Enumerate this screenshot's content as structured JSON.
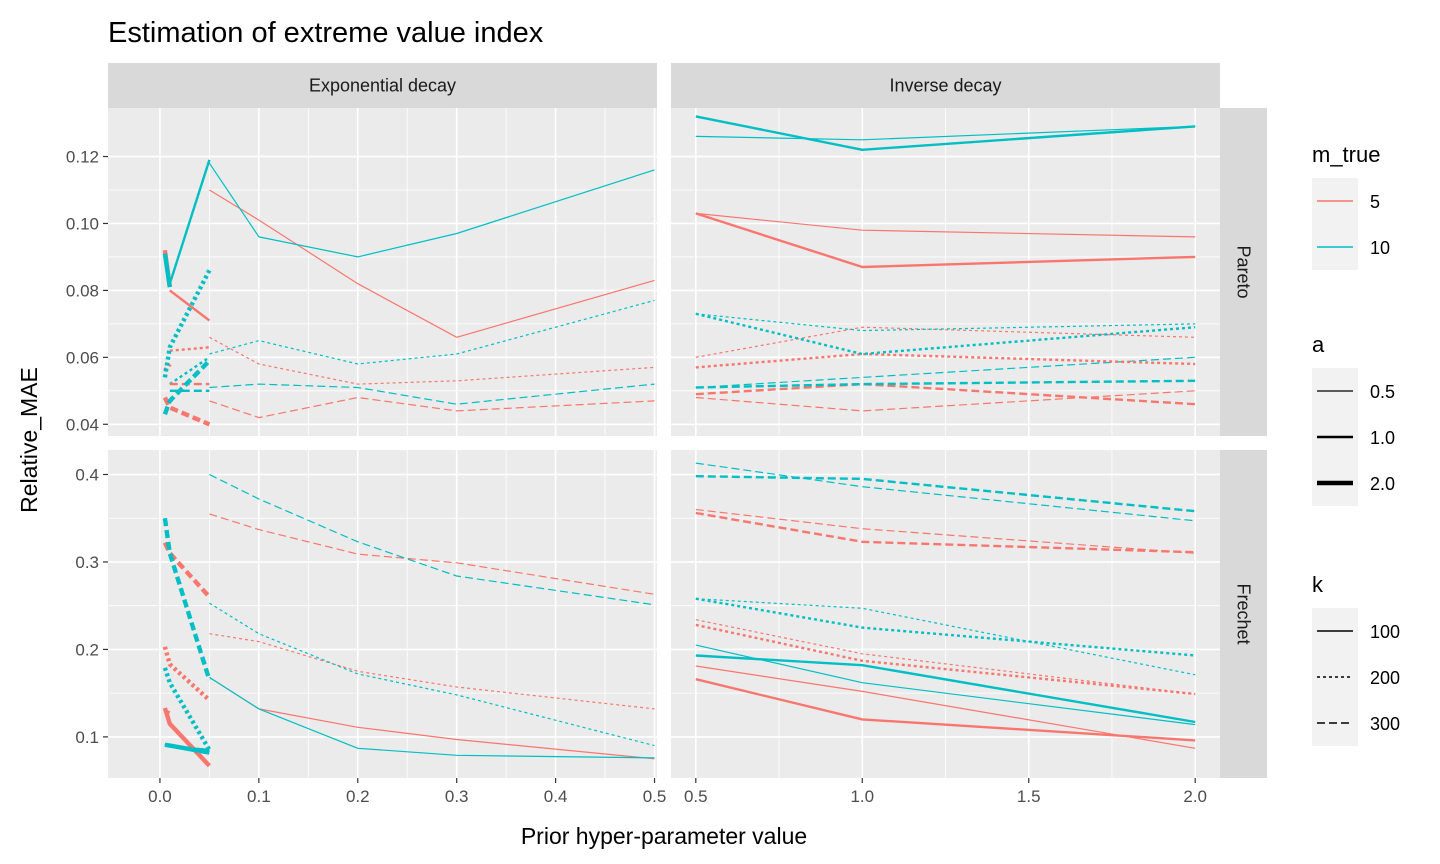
{
  "chart_data": {
    "type": "line",
    "title": "Estimation of extreme value index",
    "xlabel": "Prior hyper-parameter value",
    "ylabel": "Relative_MAE",
    "facets": {
      "columns": [
        "Exponential decay",
        "Inverse decay"
      ],
      "rows": [
        "Pareto",
        "Frechet"
      ]
    },
    "axes": {
      "x_ticks": [
        {
          "values": [
            0.0,
            0.1,
            0.2,
            0.3,
            0.4,
            0.5
          ],
          "labels": [
            "0.0",
            "0.1",
            "0.2",
            "0.3",
            "0.4",
            "0.5"
          ],
          "xlim": [
            -0.0525,
            0.5025
          ]
        },
        {
          "values": [
            0.5,
            1.0,
            1.5,
            2.0
          ],
          "labels": [
            "0.5",
            "1.0",
            "1.5",
            "2.0"
          ],
          "xlim": [
            0.4255,
            2.0745
          ]
        }
      ],
      "y_ticks": [
        {
          "values": [
            0.04,
            0.06,
            0.08,
            0.1,
            0.12
          ],
          "labels": [
            "0.04",
            "0.06",
            "0.08",
            "0.10",
            "0.12"
          ],
          "ylim": [
            0.0365,
            0.1345
          ]
        },
        {
          "values": [
            0.1,
            0.2,
            0.3,
            0.4
          ],
          "labels": [
            "0.1",
            "0.2",
            "0.3",
            "0.4"
          ],
          "ylim": [
            0.053,
            0.428
          ]
        }
      ],
      "grid": true
    },
    "legend": {
      "placement": "right",
      "groups": [
        {
          "title": "m_true",
          "kind": "color",
          "items": [
            {
              "label": "5",
              "color": "#F8766D"
            },
            {
              "label": "10",
              "color": "#00BFC4"
            }
          ]
        },
        {
          "title": "a",
          "kind": "width",
          "items": [
            {
              "label": "0.5",
              "width": 1.2
            },
            {
              "label": "1.0",
              "width": 2.4
            },
            {
              "label": "2.0",
              "width": 4.4
            }
          ]
        },
        {
          "title": "k",
          "kind": "linetype",
          "items": [
            {
              "label": "100",
              "dash": ""
            },
            {
              "label": "200",
              "dash": "3,3"
            },
            {
              "label": "300",
              "dash": "8,4"
            }
          ]
        }
      ]
    },
    "series": [
      {
        "panel": [
          0,
          0
        ],
        "m_true": "5",
        "a": "0.5",
        "k": "100",
        "x": [
          0.05,
          0.1,
          0.2,
          0.3,
          0.5
        ],
        "y": [
          0.11,
          0.101,
          0.082,
          0.066,
          0.083
        ]
      },
      {
        "panel": [
          0,
          0
        ],
        "m_true": "10",
        "a": "0.5",
        "k": "100",
        "x": [
          0.05,
          0.1,
          0.2,
          0.3,
          0.5
        ],
        "y": [
          0.118,
          0.096,
          0.09,
          0.097,
          0.116
        ]
      },
      {
        "panel": [
          0,
          0
        ],
        "m_true": "5",
        "a": "0.5",
        "k": "200",
        "x": [
          0.05,
          0.1,
          0.2,
          0.3,
          0.5
        ],
        "y": [
          0.066,
          0.058,
          0.052,
          0.053,
          0.057
        ]
      },
      {
        "panel": [
          0,
          0
        ],
        "m_true": "10",
        "a": "0.5",
        "k": "200",
        "x": [
          0.05,
          0.1,
          0.2,
          0.3,
          0.5
        ],
        "y": [
          0.061,
          0.065,
          0.058,
          0.061,
          0.077
        ]
      },
      {
        "panel": [
          0,
          0
        ],
        "m_true": "5",
        "a": "0.5",
        "k": "300",
        "x": [
          0.05,
          0.1,
          0.2,
          0.3,
          0.5
        ],
        "y": [
          0.047,
          0.042,
          0.048,
          0.044,
          0.047
        ]
      },
      {
        "panel": [
          0,
          0
        ],
        "m_true": "10",
        "a": "0.5",
        "k": "300",
        "x": [
          0.05,
          0.1,
          0.2,
          0.3,
          0.5
        ],
        "y": [
          0.051,
          0.052,
          0.051,
          0.046,
          0.052
        ]
      },
      {
        "panel": [
          0,
          0
        ],
        "m_true": "5",
        "a": "1.0",
        "k": "100",
        "x": [
          0.01,
          0.05
        ],
        "y": [
          0.08,
          0.071
        ]
      },
      {
        "panel": [
          0,
          0
        ],
        "m_true": "10",
        "a": "1.0",
        "k": "100",
        "x": [
          0.01,
          0.05
        ],
        "y": [
          0.082,
          0.119
        ]
      },
      {
        "panel": [
          0,
          0
        ],
        "m_true": "5",
        "a": "1.0",
        "k": "200",
        "x": [
          0.01,
          0.05
        ],
        "y": [
          0.062,
          0.063
        ]
      },
      {
        "panel": [
          0,
          0
        ],
        "m_true": "10",
        "a": "1.0",
        "k": "200",
        "x": [
          0.01,
          0.05
        ],
        "y": [
          0.052,
          0.06
        ]
      },
      {
        "panel": [
          0,
          0
        ],
        "m_true": "5",
        "a": "1.0",
        "k": "300",
        "x": [
          0.01,
          0.05
        ],
        "y": [
          0.052,
          0.052
        ]
      },
      {
        "panel": [
          0,
          0
        ],
        "m_true": "10",
        "a": "1.0",
        "k": "300",
        "x": [
          0.01,
          0.05
        ],
        "y": [
          0.05,
          0.05
        ]
      },
      {
        "panel": [
          0,
          0
        ],
        "m_true": "5",
        "a": "2.0",
        "k": "100",
        "x": [
          0.005,
          0.01
        ],
        "y": [
          0.092,
          0.081
        ]
      },
      {
        "panel": [
          0,
          0
        ],
        "m_true": "10",
        "a": "2.0",
        "k": "100",
        "x": [
          0.005,
          0.01
        ],
        "y": [
          0.091,
          0.081
        ]
      },
      {
        "panel": [
          0,
          0
        ],
        "m_true": "5",
        "a": "2.0",
        "k": "200",
        "x": [
          0.005,
          0.01
        ],
        "y": [
          0.056,
          0.058
        ]
      },
      {
        "panel": [
          0,
          0
        ],
        "m_true": "10",
        "a": "2.0",
        "k": "200",
        "x": [
          0.005,
          0.01,
          0.05
        ],
        "y": [
          0.054,
          0.063,
          0.086
        ]
      },
      {
        "panel": [
          0,
          0
        ],
        "m_true": "5",
        "a": "2.0",
        "k": "300",
        "x": [
          0.005,
          0.01,
          0.05
        ],
        "y": [
          0.048,
          0.045,
          0.04
        ]
      },
      {
        "panel": [
          0,
          0
        ],
        "m_true": "10",
        "a": "2.0",
        "k": "300",
        "x": [
          0.005,
          0.01,
          0.05
        ],
        "y": [
          0.043,
          0.047,
          0.059
        ]
      },
      {
        "panel": [
          0,
          1
        ],
        "m_true": "5",
        "a": "0.5",
        "k": "100",
        "x": [
          0.5,
          1.0,
          2.0
        ],
        "y": [
          0.103,
          0.098,
          0.096
        ]
      },
      {
        "panel": [
          0,
          1
        ],
        "m_true": "10",
        "a": "0.5",
        "k": "100",
        "x": [
          0.5,
          1.0,
          2.0
        ],
        "y": [
          0.126,
          0.125,
          0.129
        ]
      },
      {
        "panel": [
          0,
          1
        ],
        "m_true": "5",
        "a": "0.5",
        "k": "200",
        "x": [
          0.5,
          1.0,
          2.0
        ],
        "y": [
          0.06,
          0.069,
          0.066
        ]
      },
      {
        "panel": [
          0,
          1
        ],
        "m_true": "10",
        "a": "0.5",
        "k": "200",
        "x": [
          0.5,
          1.0,
          2.0
        ],
        "y": [
          0.073,
          0.068,
          0.07
        ]
      },
      {
        "panel": [
          0,
          1
        ],
        "m_true": "5",
        "a": "0.5",
        "k": "300",
        "x": [
          0.5,
          1.0,
          2.0
        ],
        "y": [
          0.048,
          0.044,
          0.05
        ]
      },
      {
        "panel": [
          0,
          1
        ],
        "m_true": "10",
        "a": "0.5",
        "k": "300",
        "x": [
          0.5,
          1.0,
          2.0
        ],
        "y": [
          0.051,
          0.054,
          0.06
        ]
      },
      {
        "panel": [
          0,
          1
        ],
        "m_true": "5",
        "a": "1.0",
        "k": "100",
        "x": [
          0.5,
          1.0,
          2.0
        ],
        "y": [
          0.103,
          0.087,
          0.09
        ]
      },
      {
        "panel": [
          0,
          1
        ],
        "m_true": "10",
        "a": "1.0",
        "k": "100",
        "x": [
          0.5,
          1.0,
          2.0
        ],
        "y": [
          0.132,
          0.122,
          0.129
        ]
      },
      {
        "panel": [
          0,
          1
        ],
        "m_true": "5",
        "a": "1.0",
        "k": "200",
        "x": [
          0.5,
          1.0,
          2.0
        ],
        "y": [
          0.057,
          0.061,
          0.058
        ]
      },
      {
        "panel": [
          0,
          1
        ],
        "m_true": "10",
        "a": "1.0",
        "k": "200",
        "x": [
          0.5,
          1.0,
          2.0
        ],
        "y": [
          0.073,
          0.061,
          0.069
        ]
      },
      {
        "panel": [
          0,
          1
        ],
        "m_true": "5",
        "a": "1.0",
        "k": "300",
        "x": [
          0.5,
          1.0,
          2.0
        ],
        "y": [
          0.049,
          0.052,
          0.046
        ]
      },
      {
        "panel": [
          0,
          1
        ],
        "m_true": "10",
        "a": "1.0",
        "k": "300",
        "x": [
          0.5,
          1.0,
          2.0
        ],
        "y": [
          0.051,
          0.052,
          0.053
        ]
      },
      {
        "panel": [
          1,
          0
        ],
        "m_true": "5",
        "a": "0.5",
        "k": "100",
        "x": [
          0.05,
          0.1,
          0.2,
          0.3,
          0.5
        ],
        "y": [
          0.168,
          0.132,
          0.111,
          0.097,
          0.075
        ]
      },
      {
        "panel": [
          1,
          0
        ],
        "m_true": "10",
        "a": "0.5",
        "k": "100",
        "x": [
          0.05,
          0.1,
          0.2,
          0.3,
          0.5
        ],
        "y": [
          0.168,
          0.132,
          0.087,
          0.079,
          0.076
        ]
      },
      {
        "panel": [
          1,
          0
        ],
        "m_true": "5",
        "a": "0.5",
        "k": "200",
        "x": [
          0.05,
          0.1,
          0.2,
          0.3,
          0.5
        ],
        "y": [
          0.218,
          0.209,
          0.175,
          0.157,
          0.132
        ]
      },
      {
        "panel": [
          1,
          0
        ],
        "m_true": "10",
        "a": "0.5",
        "k": "200",
        "x": [
          0.05,
          0.1,
          0.2,
          0.3,
          0.5
        ],
        "y": [
          0.253,
          0.218,
          0.172,
          0.148,
          0.09
        ]
      },
      {
        "panel": [
          1,
          0
        ],
        "m_true": "5",
        "a": "0.5",
        "k": "300",
        "x": [
          0.05,
          0.1,
          0.2,
          0.3,
          0.5
        ],
        "y": [
          0.355,
          0.337,
          0.309,
          0.299,
          0.263
        ]
      },
      {
        "panel": [
          1,
          0
        ],
        "m_true": "10",
        "a": "0.5",
        "k": "300",
        "x": [
          0.05,
          0.1,
          0.2,
          0.3,
          0.5
        ],
        "y": [
          0.4,
          0.372,
          0.323,
          0.284,
          0.251
        ]
      },
      {
        "panel": [
          1,
          0
        ],
        "m_true": "5",
        "a": "1.0",
        "k": "100",
        "x": [
          0.005,
          0.01
        ],
        "y": [
          0.13,
          0.128
        ]
      },
      {
        "panel": [
          1,
          0
        ],
        "m_true": "10",
        "a": "1.0",
        "k": "100",
        "x": [
          0.005,
          0.01,
          0.05
        ],
        "y": [
          0.092,
          0.089,
          0.085
        ]
      },
      {
        "panel": [
          1,
          0
        ],
        "m_true": "5",
        "a": "2.0",
        "k": "100",
        "x": [
          0.005,
          0.01,
          0.05
        ],
        "y": [
          0.133,
          0.115,
          0.067
        ]
      },
      {
        "panel": [
          1,
          0
        ],
        "m_true": "10",
        "a": "2.0",
        "k": "100",
        "x": [
          0.005,
          0.01,
          0.05
        ],
        "y": [
          0.091,
          0.09,
          0.082
        ]
      },
      {
        "panel": [
          1,
          0
        ],
        "m_true": "5",
        "a": "2.0",
        "k": "200",
        "x": [
          0.005,
          0.01,
          0.05
        ],
        "y": [
          0.203,
          0.183,
          0.142
        ]
      },
      {
        "panel": [
          1,
          0
        ],
        "m_true": "10",
        "a": "2.0",
        "k": "200",
        "x": [
          0.005,
          0.01,
          0.05
        ],
        "y": [
          0.179,
          0.162,
          0.085
        ]
      },
      {
        "panel": [
          1,
          0
        ],
        "m_true": "5",
        "a": "2.0",
        "k": "300",
        "x": [
          0.005,
          0.01,
          0.05
        ],
        "y": [
          0.322,
          0.31,
          0.26
        ]
      },
      {
        "panel": [
          1,
          0
        ],
        "m_true": "10",
        "a": "2.0",
        "k": "300",
        "x": [
          0.005,
          0.01,
          0.05
        ],
        "y": [
          0.35,
          0.31,
          0.165
        ]
      },
      {
        "panel": [
          1,
          1
        ],
        "m_true": "5",
        "a": "0.5",
        "k": "100",
        "x": [
          0.5,
          1.0,
          2.0
        ],
        "y": [
          0.181,
          0.152,
          0.087
        ]
      },
      {
        "panel": [
          1,
          1
        ],
        "m_true": "10",
        "a": "0.5",
        "k": "100",
        "x": [
          0.5,
          1.0,
          2.0
        ],
        "y": [
          0.205,
          0.162,
          0.114
        ]
      },
      {
        "panel": [
          1,
          1
        ],
        "m_true": "5",
        "a": "0.5",
        "k": "200",
        "x": [
          0.5,
          1.0,
          2.0
        ],
        "y": [
          0.234,
          0.195,
          0.149
        ]
      },
      {
        "panel": [
          1,
          1
        ],
        "m_true": "10",
        "a": "0.5",
        "k": "200",
        "x": [
          0.5,
          1.0,
          2.0
        ],
        "y": [
          0.258,
          0.247,
          0.171
        ]
      },
      {
        "panel": [
          1,
          1
        ],
        "m_true": "5",
        "a": "0.5",
        "k": "300",
        "x": [
          0.5,
          1.0,
          2.0
        ],
        "y": [
          0.36,
          0.338,
          0.31
        ]
      },
      {
        "panel": [
          1,
          1
        ],
        "m_true": "10",
        "a": "0.5",
        "k": "300",
        "x": [
          0.5,
          1.0,
          2.0
        ],
        "y": [
          0.413,
          0.386,
          0.347
        ]
      },
      {
        "panel": [
          1,
          1
        ],
        "m_true": "5",
        "a": "1.0",
        "k": "100",
        "x": [
          0.5,
          1.0,
          2.0
        ],
        "y": [
          0.166,
          0.12,
          0.096
        ]
      },
      {
        "panel": [
          1,
          1
        ],
        "m_true": "10",
        "a": "1.0",
        "k": "100",
        "x": [
          0.5,
          1.0,
          2.0
        ],
        "y": [
          0.193,
          0.182,
          0.117
        ]
      },
      {
        "panel": [
          1,
          1
        ],
        "m_true": "5",
        "a": "1.0",
        "k": "200",
        "x": [
          0.5,
          1.0,
          2.0
        ],
        "y": [
          0.228,
          0.187,
          0.149
        ]
      },
      {
        "panel": [
          1,
          1
        ],
        "m_true": "10",
        "a": "1.0",
        "k": "200",
        "x": [
          0.5,
          1.0,
          2.0
        ],
        "y": [
          0.258,
          0.225,
          0.193
        ]
      },
      {
        "panel": [
          1,
          1
        ],
        "m_true": "5",
        "a": "1.0",
        "k": "300",
        "x": [
          0.5,
          1.0,
          2.0
        ],
        "y": [
          0.356,
          0.323,
          0.311
        ]
      },
      {
        "panel": [
          1,
          1
        ],
        "m_true": "10",
        "a": "1.0",
        "k": "300",
        "x": [
          0.5,
          1.0,
          2.0
        ],
        "y": [
          0.398,
          0.395,
          0.358
        ]
      }
    ]
  }
}
